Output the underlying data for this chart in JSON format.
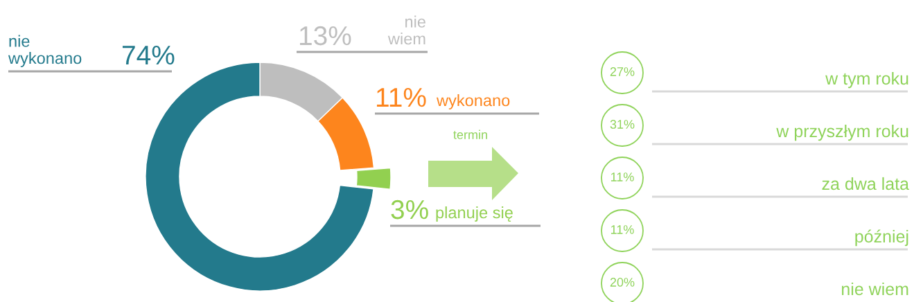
{
  "chart_data": [
    {
      "type": "donut",
      "categories": [
        "nie wiem",
        "wykonano",
        "planuje się",
        "nie wykonano"
      ],
      "values": [
        13,
        11,
        3,
        74
      ],
      "colors": [
        "#bebebe",
        "#fd851d",
        "#92d050",
        "#237a8c"
      ],
      "value_labels": [
        "13%",
        "11%",
        "3%",
        "74%"
      ]
    },
    {
      "type": "other",
      "title": "termin",
      "categories": [
        "w tym roku",
        "w przyszłym roku",
        "za dwa lata",
        "później",
        "nie wiem"
      ],
      "values": [
        27,
        31,
        11,
        11,
        20
      ],
      "value_labels": [
        "27%",
        "31%",
        "11%",
        "11%",
        "20%"
      ],
      "color": "#8fd35a"
    }
  ]
}
